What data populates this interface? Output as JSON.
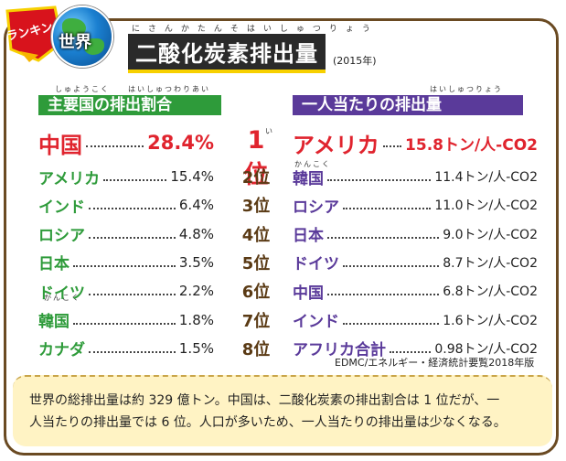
{
  "header": {
    "badge_text": "ランキング",
    "globe_label": "世界",
    "title_ruby": "にさんかたんそはいしゅつりょう",
    "title": "二酸化炭素排出量",
    "year": "(2015年)"
  },
  "left_section": {
    "ruby": "しゅようこく　　はいしゅつわりあい",
    "heading": "主要国の排出割合",
    "color": "#2e9b3a"
  },
  "right_section": {
    "ruby": "はいしゅつりょう",
    "heading": "一人当たりの排出量",
    "color": "#5a3a9a"
  },
  "chart_data": [
    {
      "type": "table",
      "title": "主要国の排出割合",
      "unit": "%",
      "categories": [
        "中国",
        "アメリカ",
        "インド",
        "ロシア",
        "日本",
        "ドイツ",
        "韓国",
        "カナダ"
      ],
      "values": [
        28.4,
        15.4,
        6.4,
        4.8,
        3.5,
        2.2,
        1.8,
        1.5
      ],
      "labels": [
        "28.4%",
        "15.4%",
        "6.4%",
        "4.8%",
        "3.5%",
        "2.2%",
        "1.8%",
        "1.5%"
      ]
    },
    {
      "type": "table",
      "title": "一人当たりの排出量",
      "unit": "トン/人-CO2",
      "categories": [
        "アメリカ",
        "韓国",
        "ロシア",
        "日本",
        "ドイツ",
        "中国",
        "インド",
        "アフリカ合計"
      ],
      "values": [
        15.8,
        11.4,
        11.0,
        9.0,
        8.7,
        6.8,
        1.6,
        0.98
      ],
      "labels": [
        "15.8トン/人-CO2",
        "11.4トン/人-CO2",
        "11.0トン/人-CO2",
        "9.0トン/人-CO2",
        "8.7トン/人-CO2",
        "6.8トン/人-CO2",
        "1.6トン/人-CO2",
        "0.98トン/人-CO2"
      ]
    }
  ],
  "ranks": [
    "1位",
    "2位",
    "3位",
    "4位",
    "5位",
    "6位",
    "7位",
    "8位"
  ],
  "rank_ruby": "い",
  "ruby_kankoku": "かんこく",
  "source": "EDMC/エネルギー・経済統計要覧2018年版",
  "note": {
    "line1": "世界の総排出量は約 329 億トン。中国は、二酸化炭素の排出割合は 1 位だが、一",
    "line2": "人当たりの排出量では 6 位。人口が多いため、一人当たりの排出量は少なくなる。"
  },
  "colors": {
    "frame": "#6a4a22",
    "highlight": "#e0242e",
    "left_name": "#2e9b3a",
    "right_name": "#5a3a9a",
    "rank": "#5a3a14",
    "note_bg": "#fff3c4"
  }
}
